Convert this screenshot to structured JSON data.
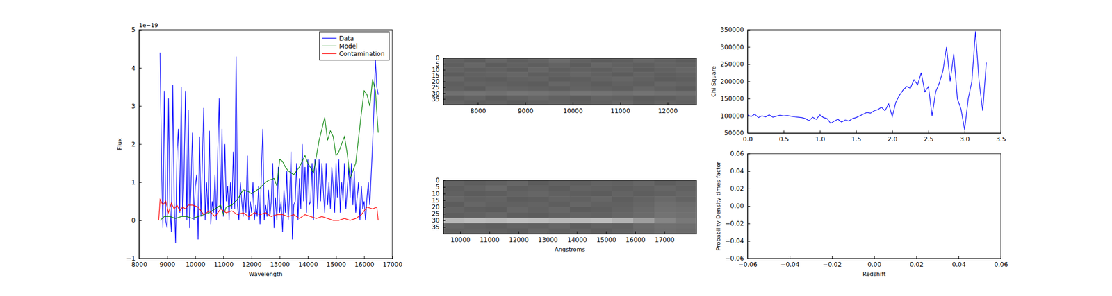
{
  "chart_data": [
    {
      "type": "line",
      "xlabel": "Wavelength",
      "ylabel": "Flux",
      "annotations": [
        "1e−19"
      ],
      "xlim": [
        8000,
        17000
      ],
      "xticks": [
        8000,
        9000,
        10000,
        11000,
        12000,
        13000,
        14000,
        15000,
        16000,
        17000
      ],
      "ylim": [
        -1,
        5
      ],
      "yticks": [
        {
          "value": -1,
          "label": "−1"
        },
        0,
        1,
        2,
        3,
        4,
        5
      ],
      "grid": false,
      "legend": "upper right",
      "series": [
        {
          "name": "Data",
          "color": "#0000ff",
          "x": [
            8750,
            8800,
            8850,
            8900,
            8950,
            9000,
            9050,
            9100,
            9150,
            9200,
            9250,
            9300,
            9350,
            9400,
            9450,
            9500,
            9550,
            9600,
            9650,
            9700,
            9750,
            9800,
            9850,
            9900,
            9950,
            10000,
            10050,
            10100,
            10150,
            10200,
            10250,
            10300,
            10350,
            10400,
            10450,
            10500,
            10550,
            10600,
            10650,
            10700,
            10750,
            10800,
            10850,
            10900,
            10950,
            11000,
            11050,
            11100,
            11150,
            11200,
            11250,
            11300,
            11350,
            11400,
            11450,
            11500,
            11550,
            11600,
            11650,
            11700,
            11750,
            11800,
            11850,
            11900,
            11950,
            12000,
            12050,
            12100,
            12150,
            12200,
            12250,
            12300,
            12350,
            12400,
            12450,
            12500,
            12550,
            12600,
            12650,
            12700,
            12750,
            12800,
            12850,
            12900,
            12950,
            13000,
            13050,
            13100,
            13150,
            13200,
            13250,
            13300,
            13350,
            13400,
            13450,
            13500,
            13550,
            13600,
            13650,
            13700,
            13750,
            13800,
            13850,
            13900,
            13950,
            14000,
            14050,
            14100,
            14150,
            14200,
            14250,
            14300,
            14350,
            14400,
            14450,
            14500,
            14550,
            14600,
            14650,
            14700,
            14750,
            14800,
            14850,
            14900,
            14950,
            15000,
            15050,
            15100,
            15150,
            15200,
            15250,
            15300,
            15350,
            15400,
            15450,
            15500,
            15550,
            15600,
            15650,
            15700,
            15750,
            15800,
            15850,
            15900,
            15950,
            16000,
            16050,
            16100,
            16150,
            16200,
            16250,
            16300,
            16350,
            16400,
            16450,
            16500
          ],
          "values": [
            4.4,
            1.5,
            -0.2,
            3.4,
            0.0,
            -0.2,
            3.2,
            0.3,
            -0.3,
            3.55,
            0.5,
            -0.6,
            1.8,
            2.4,
            0.2,
            3.5,
            0.1,
            1.2,
            3.4,
            0.0,
            2.9,
            -0.2,
            1.0,
            2.3,
            0.0,
            0.9,
            1.2,
            -0.5,
            2.2,
            0.1,
            1.5,
            2.95,
            0.0,
            1.0,
            0.2,
            2.35,
            -0.1,
            0.5,
            0.2,
            1.2,
            0.0,
            1.8,
            3.2,
            0.3,
            2.4,
            0.1,
            2.0,
            0.5,
            0.9,
            0.0,
            1.0,
            0.3,
            1.8,
            0.3,
            4.3,
            0.4,
            0.0,
            1.0,
            0.5,
            0.1,
            0.8,
            0.2,
            1.7,
            0.0,
            0.5,
            0.2,
            1.0,
            0.0,
            0.4,
            0.1,
            0.9,
            -0.1,
            1.3,
            2.4,
            0.0,
            0.4,
            0.1,
            0.8,
            0.1,
            0.5,
            1.5,
            -0.2,
            0.6,
            0.0,
            1.4,
            0.2,
            0.5,
            -0.3,
            0.8,
            0.2,
            1.3,
            0.0,
            0.6,
            1.8,
            -0.5,
            0.4,
            0.5,
            1.5,
            0.0,
            1.1,
            0.3,
            2.0,
            0.5,
            1.4,
            0.2,
            1.6,
            0.4,
            0.5,
            1.5,
            0.0,
            1.6,
            1.3,
            0.3,
            1.6,
            0.5,
            1.5,
            0.8,
            0.2,
            1.5,
            0.4,
            1.0,
            0.3,
            1.4,
            0.9,
            0.2,
            1.5,
            0.6,
            1.6,
            0.2,
            1.0,
            0.5,
            1.5,
            0.3,
            0.8,
            1.4,
            0.6,
            1.5,
            0.4,
            1.3,
            0.2,
            0.6,
            1.0,
            0.0,
            0.9,
            0.3,
            0.5,
            0.0,
            0.6,
            1.0,
            0.4,
            1.2,
            2.0,
            3.0,
            4.2,
            3.5,
            3.3
          ]
        },
        {
          "name": "Model",
          "color": "#008000",
          "x": [
            8750,
            8900,
            9100,
            9300,
            9500,
            9700,
            9900,
            10100,
            10300,
            10500,
            10700,
            10900,
            11000,
            11100,
            11300,
            11500,
            11700,
            11900,
            12000,
            12100,
            12300,
            12500,
            12600,
            12800,
            12900,
            13000,
            13100,
            13200,
            13300,
            13500,
            13700,
            13900,
            14000,
            14200,
            14400,
            14500,
            14600,
            14700,
            14800,
            14900,
            15000,
            15100,
            15300,
            15400,
            15500,
            15700,
            15900,
            16000,
            16100,
            16200,
            16300,
            16400,
            16500
          ],
          "values": [
            0.0,
            0.1,
            0.1,
            0.05,
            0.1,
            0.1,
            0.05,
            0.1,
            0.15,
            0.2,
            0.3,
            0.4,
            0.15,
            0.35,
            0.4,
            0.55,
            0.8,
            0.75,
            0.7,
            0.75,
            0.85,
            1.0,
            1.05,
            1.1,
            0.9,
            1.6,
            1.55,
            1.4,
            1.3,
            1.2,
            1.4,
            1.7,
            1.5,
            1.25,
            2.1,
            2.4,
            2.7,
            2.1,
            2.35,
            2.2,
            1.7,
            1.8,
            2.2,
            1.75,
            1.1,
            1.5,
            2.8,
            3.4,
            3.3,
            3.0,
            3.7,
            3.4,
            2.3
          ]
        },
        {
          "name": "Contamination",
          "color": "#ff0000",
          "x": [
            8700,
            8750,
            8850,
            8950,
            9050,
            9150,
            9250,
            9350,
            9450,
            9550,
            9650,
            9750,
            9900,
            10100,
            10300,
            10500,
            10700,
            10900,
            11100,
            11300,
            11500,
            11700,
            11900,
            12100,
            12300,
            12500,
            12700,
            12900,
            13100,
            13300,
            13500,
            13700,
            13900,
            14100,
            14300,
            14500,
            14700,
            14900,
            15100,
            15300,
            15500,
            15700,
            15900,
            16100,
            16300,
            16450,
            16500
          ],
          "values": [
            0.0,
            0.55,
            0.4,
            0.5,
            0.2,
            0.45,
            0.3,
            0.4,
            0.25,
            0.35,
            0.3,
            0.4,
            0.4,
            0.35,
            0.15,
            0.25,
            0.1,
            0.3,
            0.2,
            0.25,
            0.15,
            0.2,
            0.1,
            0.2,
            0.15,
            0.2,
            0.1,
            0.15,
            0.15,
            0.1,
            0.15,
            0.05,
            0.15,
            0.1,
            0.05,
            0.1,
            0.05,
            0.0,
            0.0,
            0.05,
            0.0,
            0.05,
            0.15,
            0.35,
            0.3,
            0.35,
            0.0
          ]
        }
      ]
    },
    {
      "type": "heatmap",
      "xlim": [
        7270,
        12610
      ],
      "xticks": [
        8000,
        9000,
        10000,
        11000,
        12000
      ],
      "ylim": [
        40,
        0
      ],
      "yticks": [
        0,
        5,
        10,
        15,
        20,
        25,
        30,
        35
      ],
      "zlim": [
        0,
        1
      ],
      "grid": false,
      "cells": [
        [
          0.38,
          0.36,
          0.4,
          0.37,
          0.39,
          0.42,
          0.38,
          0.36,
          0.37,
          0.4,
          0.38,
          0.36
        ],
        [
          0.37,
          0.4,
          0.36,
          0.38,
          0.37,
          0.39,
          0.36,
          0.4,
          0.38,
          0.37,
          0.39,
          0.38
        ],
        [
          0.39,
          0.37,
          0.38,
          0.36,
          0.4,
          0.37,
          0.38,
          0.37,
          0.39,
          0.36,
          0.38,
          0.4
        ],
        [
          0.36,
          0.38,
          0.39,
          0.4,
          0.37,
          0.38,
          0.4,
          0.38,
          0.36,
          0.39,
          0.37,
          0.38
        ],
        [
          0.4,
          0.37,
          0.36,
          0.38,
          0.39,
          0.36,
          0.37,
          0.39,
          0.4,
          0.38,
          0.36,
          0.37
        ],
        [
          0.37,
          0.39,
          0.38,
          0.37,
          0.36,
          0.4,
          0.38,
          0.36,
          0.38,
          0.37,
          0.4,
          0.39
        ],
        [
          0.38,
          0.36,
          0.4,
          0.39,
          0.38,
          0.37,
          0.39,
          0.38,
          0.37,
          0.4,
          0.38,
          0.36
        ],
        [
          0.44,
          0.45,
          0.44,
          0.46,
          0.45,
          0.44,
          0.46,
          0.45,
          0.44,
          0.45,
          0.44,
          0.43
        ],
        [
          0.37,
          0.39,
          0.36,
          0.38,
          0.4,
          0.38,
          0.36,
          0.39,
          0.38,
          0.36,
          0.37,
          0.39
        ],
        [
          0.39,
          0.37,
          0.38,
          0.36,
          0.38,
          0.39,
          0.37,
          0.38,
          0.4,
          0.37,
          0.39,
          0.38
        ]
      ]
    },
    {
      "type": "heatmap",
      "xlabel": "Angstroms",
      "xlim": [
        9420,
        18100
      ],
      "xticks": [
        10000,
        11000,
        12000,
        13000,
        14000,
        15000,
        16000,
        17000
      ],
      "ylim": [
        40,
        0
      ],
      "yticks": [
        0,
        5,
        10,
        15,
        20,
        25,
        30,
        35
      ],
      "zlim": [
        0,
        1
      ],
      "grid": false,
      "cells": [
        [
          0.39,
          0.37,
          0.38,
          0.4,
          0.36,
          0.38,
          0.37,
          0.39,
          0.38,
          0.4,
          0.37,
          0.39
        ],
        [
          0.37,
          0.39,
          0.41,
          0.37,
          0.38,
          0.36,
          0.39,
          0.38,
          0.37,
          0.38,
          0.4,
          0.38
        ],
        [
          0.38,
          0.36,
          0.37,
          0.39,
          0.4,
          0.38,
          0.37,
          0.36,
          0.39,
          0.37,
          0.38,
          0.4
        ],
        [
          0.4,
          0.38,
          0.39,
          0.36,
          0.37,
          0.39,
          0.38,
          0.4,
          0.37,
          0.39,
          0.41,
          0.39
        ],
        [
          0.36,
          0.4,
          0.38,
          0.38,
          0.39,
          0.37,
          0.4,
          0.38,
          0.38,
          0.4,
          0.43,
          0.42
        ],
        [
          0.39,
          0.37,
          0.36,
          0.4,
          0.38,
          0.4,
          0.36,
          0.37,
          0.39,
          0.41,
          0.44,
          0.43
        ],
        [
          0.37,
          0.38,
          0.4,
          0.37,
          0.36,
          0.38,
          0.39,
          0.38,
          0.4,
          0.42,
          0.45,
          0.44
        ],
        [
          0.72,
          0.74,
          0.73,
          0.75,
          0.74,
          0.72,
          0.73,
          0.74,
          0.7,
          0.62,
          0.52,
          0.47
        ],
        [
          0.4,
          0.38,
          0.37,
          0.39,
          0.38,
          0.4,
          0.37,
          0.39,
          0.38,
          0.42,
          0.44,
          0.43
        ],
        [
          0.38,
          0.39,
          0.38,
          0.37,
          0.4,
          0.38,
          0.39,
          0.37,
          0.39,
          0.41,
          0.43,
          0.42
        ]
      ]
    },
    {
      "type": "line",
      "ylabel": "Chi Square",
      "xlim": [
        0,
        3.5
      ],
      "xticks": [
        {
          "value": 0,
          "label": "0.0"
        },
        0.5,
        {
          "value": 1,
          "label": "1.0"
        },
        1.5,
        {
          "value": 2,
          "label": "2.0"
        },
        2.5,
        {
          "value": 3,
          "label": "3.0"
        },
        3.5
      ],
      "ylim": [
        50000,
        350000
      ],
      "yticks": [
        50000,
        100000,
        150000,
        200000,
        250000,
        300000,
        350000
      ],
      "grid": false,
      "series": [
        {
          "color": "#0000ff",
          "x": [
            0,
            0.05,
            0.1,
            0.15,
            0.2,
            0.25,
            0.3,
            0.35,
            0.4,
            0.45,
            0.5,
            0.55,
            0.6,
            0.65,
            0.7,
            0.75,
            0.8,
            0.85,
            0.9,
            0.95,
            1.0,
            1.05,
            1.1,
            1.15,
            1.2,
            1.25,
            1.3,
            1.35,
            1.4,
            1.45,
            1.5,
            1.55,
            1.6,
            1.65,
            1.7,
            1.75,
            1.8,
            1.85,
            1.9,
            1.95,
            2.0,
            2.05,
            2.1,
            2.15,
            2.2,
            2.25,
            2.3,
            2.35,
            2.4,
            2.45,
            2.5,
            2.55,
            2.6,
            2.65,
            2.7,
            2.75,
            2.8,
            2.85,
            2.9,
            2.95,
            3.0,
            3.05,
            3.1,
            3.15,
            3.2,
            3.25,
            3.3
          ],
          "values": [
            103000,
            98000,
            105000,
            95000,
            100000,
            97000,
            103000,
            96000,
            99000,
            102000,
            100000,
            101000,
            99000,
            97000,
            96000,
            95000,
            92000,
            86000,
            96000,
            90000,
            103000,
            95000,
            92000,
            78000,
            85000,
            90000,
            82000,
            88000,
            85000,
            92000,
            95000,
            100000,
            105000,
            110000,
            108000,
            115000,
            118000,
            125000,
            115000,
            135000,
            98000,
            140000,
            160000,
            175000,
            185000,
            180000,
            205000,
            190000,
            225000,
            170000,
            185000,
            100000,
            170000,
            195000,
            230000,
            300000,
            200000,
            280000,
            150000,
            120000,
            60000,
            150000,
            200000,
            345000,
            200000,
            115000,
            255000
          ]
        }
      ]
    },
    {
      "type": "line",
      "xlabel": "Redshift",
      "ylabel": "Probability Density times factor",
      "xlim": [
        -0.06,
        0.06
      ],
      "xticks": [
        {
          "value": -0.06,
          "label": "−0.06"
        },
        {
          "value": -0.04,
          "label": "−0.04"
        },
        {
          "value": -0.02,
          "label": "−0.02"
        },
        {
          "value": 0,
          "label": "0.00"
        },
        0.02,
        0.04,
        0.06
      ],
      "ylim": [
        -0.06,
        0.06
      ],
      "yticks": [
        {
          "value": -0.06,
          "label": "−0.06"
        },
        {
          "value": -0.04,
          "label": "−0.04"
        },
        {
          "value": -0.02,
          "label": "−0.02"
        },
        {
          "value": 0,
          "label": "0.00"
        },
        0.02,
        0.04,
        0.06
      ],
      "grid": false,
      "series": []
    }
  ]
}
